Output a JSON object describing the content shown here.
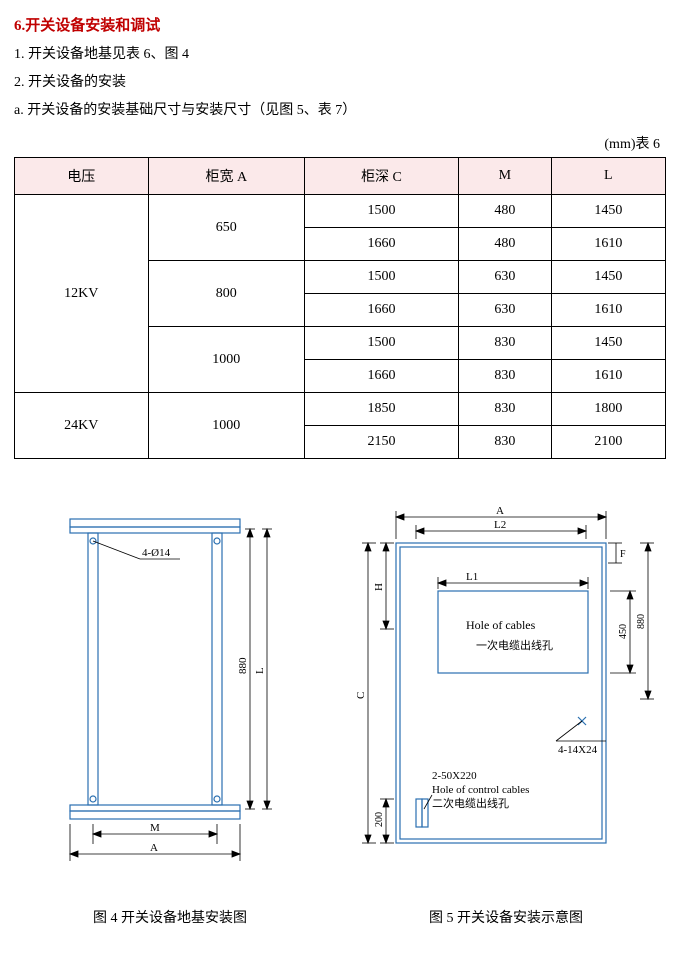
{
  "section_title": "6.开关设备安装和调试",
  "paragraphs": {
    "p1": "1. 开关设备地基见表 6、图 4",
    "p2": "2. 开关设备的安装",
    "p3": "a. 开关设备的安装基础尺寸与安装尺寸（见图 5、表 7）"
  },
  "table_unit": "(mm)表 6",
  "table": {
    "headers": [
      "电压",
      "柜宽 A",
      "柜深 C",
      "M",
      "L"
    ],
    "rows": [
      {
        "v": "12KV",
        "vspan": 6,
        "a": "650",
        "aspan": 2,
        "c": "1500",
        "m": "480",
        "l": "1450"
      },
      {
        "c": "1660",
        "m": "480",
        "l": "1610"
      },
      {
        "a": "800",
        "aspan": 2,
        "c": "1500",
        "m": "630",
        "l": "1450"
      },
      {
        "c": "1660",
        "m": "630",
        "l": "1610"
      },
      {
        "a": "1000",
        "aspan": 2,
        "c": "1500",
        "m": "830",
        "l": "1450"
      },
      {
        "c": "1660",
        "m": "830",
        "l": "1610"
      },
      {
        "v": "24KV",
        "vspan": 2,
        "a": "1000",
        "aspan": 2,
        "c": "1850",
        "m": "830",
        "l": "1800"
      },
      {
        "c": "2150",
        "m": "830",
        "l": "2100"
      }
    ]
  },
  "fig4": {
    "caption": "图 4 开关设备地基安装图",
    "label_holes": "4-Ø14",
    "dim_880": "880",
    "dim_L": "L",
    "dim_M": "M",
    "dim_A": "A",
    "svg": {
      "stroke_blue": "#2a6fb0",
      "stroke_black": "#000",
      "fill_none": "none"
    }
  },
  "fig5": {
    "caption": "图 5 开关设备安装示意图",
    "dim_A": "A",
    "dim_L2": "L2",
    "dim_L1": "L1",
    "dim_H": "H",
    "dim_C": "C",
    "dim_F": "F",
    "dim_450": "450",
    "dim_880": "880",
    "dim_200": "200",
    "label_hole_cables_en": "Hole of cables",
    "label_hole_cables_cn": "一次电缆出线孔",
    "label_4_14x24": "4-14X24",
    "label_2_50x220": "2-50X220",
    "label_ctrl_en": "Hole of control cables",
    "label_ctrl_cn": "二次电缆出线孔",
    "svg": {
      "stroke_blue": "#2a6fb0",
      "stroke_black": "#000",
      "fill_none": "none"
    }
  }
}
